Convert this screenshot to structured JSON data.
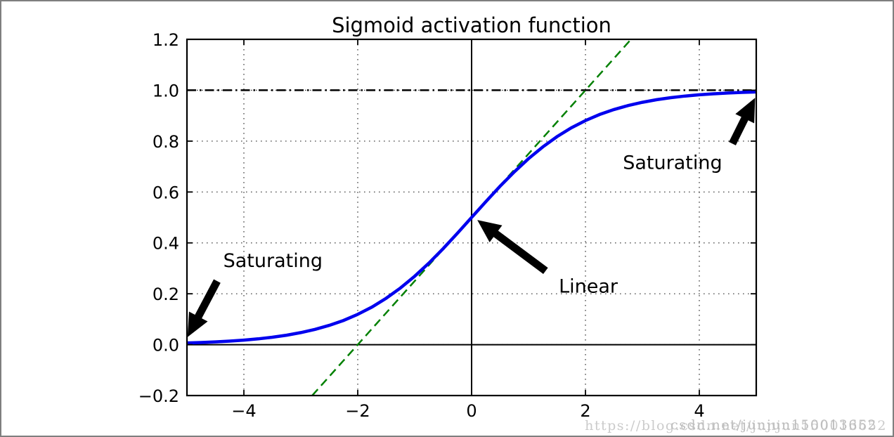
{
  "chart_data": {
    "type": "line",
    "title": "Sigmoid activation function",
    "xlabel": "",
    "ylabel": "",
    "xlim": [
      -5,
      5
    ],
    "ylim": [
      -0.2,
      1.2
    ],
    "grid": {
      "on": true,
      "style": "dotted",
      "color": "#444444"
    },
    "legend": "none",
    "xticks": {
      "values": [
        -4,
        -2,
        0,
        2,
        4
      ],
      "labels": [
        "−4",
        "−2",
        "0",
        "2",
        "4"
      ]
    },
    "yticks": {
      "values": [
        -0.2,
        0.0,
        0.2,
        0.4,
        0.6,
        0.8,
        1.0,
        1.2
      ],
      "labels": [
        "−0.2",
        "0.0",
        "0.2",
        "0.4",
        "0.6",
        "0.8",
        "1.0",
        "1.2"
      ]
    },
    "series": [
      {
        "name": "x-axis-zero-line",
        "description": "solid black horizontal line at y=0",
        "color": "#000000",
        "style": "solid",
        "width": 2,
        "x": [
          -5,
          5
        ],
        "y": [
          0,
          0
        ]
      },
      {
        "name": "y-axis-zero-line",
        "description": "solid black vertical line at x=0",
        "color": "#000000",
        "style": "solid",
        "width": 2,
        "x": [
          0,
          0
        ],
        "y": [
          -0.2,
          1.2
        ]
      },
      {
        "name": "asymptote-y-equals-1",
        "description": "black dash-dot horizontal line at y=1",
        "color": "#000000",
        "style": "dashdot",
        "width": 2.5,
        "x": [
          -5,
          5
        ],
        "y": [
          1,
          1
        ]
      },
      {
        "name": "tangent-at-origin",
        "description": "green dashed line y = 0.5 + 0.25x",
        "color": "#008000",
        "style": "dashed",
        "width": 2.5,
        "x": [
          -2.8,
          2.8
        ],
        "y": [
          -0.2,
          1.2
        ]
      },
      {
        "name": "sigmoid",
        "description": "blue curve y = 1/(1+exp(-x))",
        "color": "#0000ee",
        "style": "solid",
        "width": 4.5,
        "x": [
          -5,
          -4.75,
          -4.5,
          -4.25,
          -4,
          -3.75,
          -3.5,
          -3.25,
          -3,
          -2.75,
          -2.5,
          -2.25,
          -2,
          -1.75,
          -1.5,
          -1.25,
          -1,
          -0.75,
          -0.5,
          -0.25,
          0,
          0.25,
          0.5,
          0.75,
          1,
          1.25,
          1.5,
          1.75,
          2,
          2.25,
          2.5,
          2.75,
          3,
          3.25,
          3.5,
          3.75,
          4,
          4.25,
          4.5,
          4.75,
          5
        ],
        "y": [
          0.0067,
          0.0086,
          0.011,
          0.0141,
          0.018,
          0.0229,
          0.0293,
          0.0373,
          0.0474,
          0.0601,
          0.0759,
          0.0953,
          0.1192,
          0.148,
          0.1824,
          0.2227,
          0.2689,
          0.3208,
          0.3775,
          0.4378,
          0.5,
          0.5622,
          0.6225,
          0.6792,
          0.7311,
          0.7773,
          0.8176,
          0.852,
          0.8808,
          0.9047,
          0.9241,
          0.9399,
          0.9526,
          0.9627,
          0.9707,
          0.9771,
          0.982,
          0.9859,
          0.989,
          0.9914,
          0.9933
        ]
      }
    ],
    "annotations": [
      {
        "label": "Saturating",
        "text_x": -3.49,
        "text_y": 0.33,
        "arrow_from_x": -4.47,
        "arrow_from_y": 0.25,
        "arrow_to_x": -4.99,
        "arrow_to_y": 0.03
      },
      {
        "label": "Linear",
        "text_x": 2.05,
        "text_y": 0.23,
        "arrow_from_x": 1.3,
        "arrow_from_y": 0.29,
        "arrow_to_x": 0.1,
        "arrow_to_y": 0.49
      },
      {
        "label": "Saturating",
        "text_x": 3.53,
        "text_y": 0.715,
        "arrow_from_x": 4.58,
        "arrow_from_y": 0.79,
        "arrow_to_x": 4.98,
        "arrow_to_y": 0.97
      }
    ]
  },
  "watermark": {
    "text": "https://blog.csdn.net/junjun150013652",
    "overlay_text": "csdn.net/junjun150013652",
    "color": "#cbcbcb"
  }
}
